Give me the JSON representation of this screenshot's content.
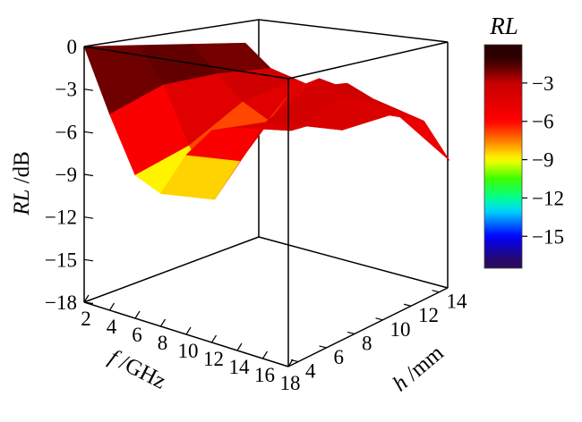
{
  "chart_data": {
    "type": "surface",
    "zlabel": {
      "italic": "RL",
      "rest": " /dB"
    },
    "xlabel": {
      "italic": "f",
      "rest": " /GHz"
    },
    "ylabel": {
      "italic": "h",
      "rest": " /mm"
    },
    "colorbar_title": "RL",
    "z_ticks": [
      "0",
      "−3",
      "−6",
      "−9",
      "−12",
      "−15",
      "−18"
    ],
    "x_ticks": [
      "2",
      "4",
      "6",
      "8",
      "10",
      "12",
      "14",
      "16",
      "18"
    ],
    "y_ticks": [
      "4",
      "6",
      "8",
      "10",
      "12",
      "14"
    ],
    "colorbar_ticks": [
      "−3",
      "−6",
      "−9",
      "−12",
      "−15"
    ],
    "zlim": [
      -18,
      0
    ],
    "xlim": [
      2,
      18
    ],
    "ylim": [
      2,
      15
    ],
    "grid": false,
    "colormap": [
      {
        "value": -1,
        "color": "#2b0000"
      },
      {
        "value": -2,
        "color": "#6e0000"
      },
      {
        "value": -3,
        "color": "#c80000"
      },
      {
        "value": -6,
        "color": "#ff0000"
      },
      {
        "value": -7.5,
        "color": "#ff7a00"
      },
      {
        "value": -9,
        "color": "#ffff00"
      },
      {
        "value": -10.5,
        "color": "#3cff00"
      },
      {
        "value": -12,
        "color": "#00ff90"
      },
      {
        "value": -13,
        "color": "#00d8ff"
      },
      {
        "value": -15,
        "color": "#0000ff"
      },
      {
        "value": -17,
        "color": "#2a0a60"
      }
    ],
    "surface_samples": {
      "h_values": [
        2,
        6,
        10,
        14
      ],
      "f_values": [
        2,
        4,
        6,
        8,
        10,
        12,
        14,
        16,
        18
      ],
      "rl": [
        [
          0,
          -4.5,
          -8.5,
          -9.5,
          -6.5,
          -4.5,
          -4.0,
          -3.5,
          -3.2
        ],
        [
          -0.5,
          -3.0,
          -7.0,
          -10.5,
          -7.5,
          -4.5,
          -4.8,
          -4.0,
          -4.2
        ],
        [
          -1.0,
          -2.8,
          -4.5,
          -5.5,
          -3.0,
          -2.0,
          -3.0,
          -3.8,
          -3.6
        ],
        [
          -1.5,
          -3.0,
          -3.5,
          -4.0,
          -3.2,
          -4.0,
          -4.5,
          -5.0,
          -7.5
        ]
      ]
    }
  }
}
